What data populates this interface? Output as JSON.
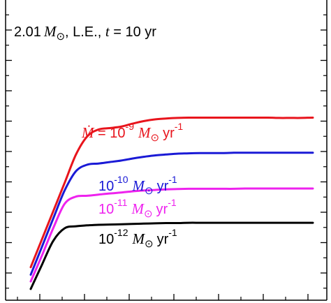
{
  "chart_data": {
    "type": "line",
    "title": {
      "mass_value": "2.01",
      "mass_symbol": "M",
      "rest": ", L.E., ",
      "t_symbol": "t",
      "t_value": " = 10 yr"
    },
    "xlabel": "",
    "ylabel": "",
    "xlim": [
      0,
      100
    ],
    "ylim": [
      0,
      100
    ],
    "tick_labels_shown": false,
    "grid": false,
    "series": [
      {
        "color": "#e8141c",
        "label": {
          "prefix": "",
          "mdot": "Ṁ",
          "equals": " = 10",
          "exp": "-9",
          "msym": "M",
          "unit": "yr",
          "uexp": "-1"
        },
        "x": [
          0,
          4,
          8,
          12,
          16,
          20,
          24,
          28,
          32,
          36,
          40,
          44,
          48,
          52,
          56,
          60,
          64,
          68,
          72,
          76,
          80,
          84,
          88,
          92,
          96,
          100
        ],
        "y": [
          8.0,
          17.7,
          27.3,
          37.0,
          46.7,
          53.0,
          55.4,
          55.9,
          56.4,
          57.4,
          58.3,
          58.9,
          59.2,
          59.4,
          59.5,
          59.5,
          59.5,
          59.5,
          59.5,
          59.5,
          59.5,
          59.5,
          59.4,
          59.4,
          59.4,
          59.5
        ]
      },
      {
        "color": "#1a1ad6",
        "label": {
          "prefix": "10",
          "mdot": "",
          "equals": "",
          "exp": "-10",
          "msym": "M",
          "unit": "yr",
          "uexp": "-1"
        },
        "x": [
          0,
          4,
          8,
          12,
          16,
          20,
          24,
          28,
          32,
          36,
          40,
          44,
          48,
          52,
          56,
          60,
          64,
          68,
          72,
          76,
          80,
          84,
          88,
          92,
          96,
          100
        ],
        "y": [
          5.4,
          15.1,
          24.8,
          34.4,
          41.0,
          43.3,
          43.7,
          44.2,
          44.7,
          45.4,
          46.0,
          46.5,
          46.8,
          47.1,
          47.2,
          47.3,
          47.3,
          47.3,
          47.4,
          47.4,
          47.4,
          47.4,
          47.4,
          47.4,
          47.4,
          47.4
        ]
      },
      {
        "color": "#ee22ee",
        "label": {
          "prefix": "10",
          "mdot": "",
          "equals": "",
          "exp": "-11",
          "msym": "M",
          "unit": "yr",
          "uexp": "-1"
        },
        "x": [
          0,
          4,
          8,
          12,
          16,
          20,
          24,
          28,
          32,
          36,
          40,
          44,
          48,
          52,
          56,
          60,
          64,
          68,
          72,
          76,
          80,
          84,
          88,
          92,
          96,
          100
        ],
        "y": [
          3.1,
          12.1,
          21.5,
          29.8,
          32.3,
          32.6,
          33.0,
          33.4,
          33.7,
          34.1,
          34.4,
          34.6,
          34.8,
          34.9,
          35.0,
          35.0,
          35.0,
          35.0,
          35.0,
          35.1,
          35.1,
          35.1,
          35.1,
          35.1,
          35.1,
          35.1
        ]
      },
      {
        "color": "#000000",
        "label": {
          "prefix": "10",
          "mdot": "",
          "equals": "",
          "exp": "-12",
          "msym": "M",
          "unit": "yr",
          "uexp": "-1"
        },
        "x": [
          0,
          4,
          8,
          12,
          16,
          20,
          24,
          28,
          32,
          36,
          40,
          44,
          48,
          52,
          56,
          60,
          64,
          68,
          72,
          76,
          80,
          84,
          88,
          92,
          96,
          100
        ],
        "y": [
          0.5,
          8.9,
          17.1,
          21.4,
          22.1,
          22.4,
          22.6,
          22.7,
          22.8,
          22.9,
          23.0,
          23.1,
          23.2,
          23.2,
          23.3,
          23.3,
          23.3,
          23.3,
          23.3,
          23.3,
          23.3,
          23.3,
          23.3,
          23.3,
          23.3,
          23.3
        ]
      }
    ]
  }
}
